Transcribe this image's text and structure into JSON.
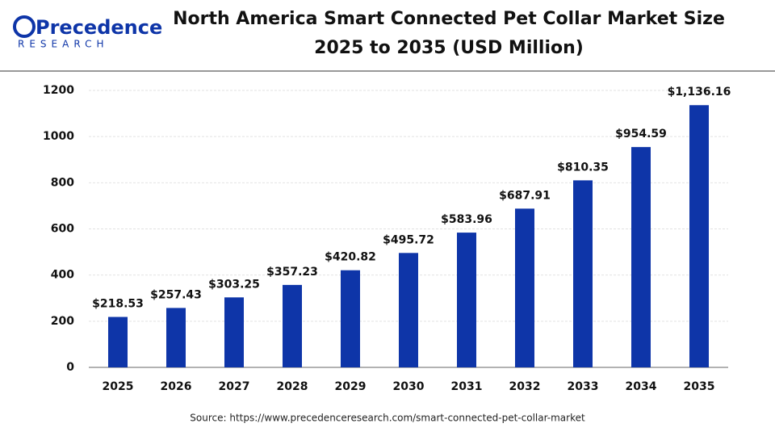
{
  "brand": {
    "name": "Precedence",
    "sub": "RESEARCH"
  },
  "chart_data": {
    "type": "bar",
    "title": [
      "North America Smart Connected Pet Collar Market Size",
      "2025 to 2035 (USD Million)"
    ],
    "categories": [
      "2025",
      "2026",
      "2027",
      "2028",
      "2029",
      "2030",
      "2031",
      "2032",
      "2033",
      "2034",
      "2035"
    ],
    "values": [
      218.53,
      257.43,
      303.25,
      357.23,
      420.82,
      495.72,
      583.96,
      687.91,
      810.35,
      954.59,
      1136.16
    ],
    "value_labels": [
      "$218.53",
      "$257.43",
      "$303.25",
      "$357.23",
      "$420.82",
      "$495.72",
      "$583.96",
      "$687.91",
      "$810.35",
      "$954.59",
      "$1,136.16"
    ],
    "color": "#0e35a8",
    "ylim": [
      0,
      1200
    ],
    "yticks": [
      0,
      200,
      400,
      600,
      800,
      1000,
      1200
    ],
    "grid": true,
    "source": "Source: https://www.precedenceresearch.com/smart-connected-pet-collar-market"
  }
}
